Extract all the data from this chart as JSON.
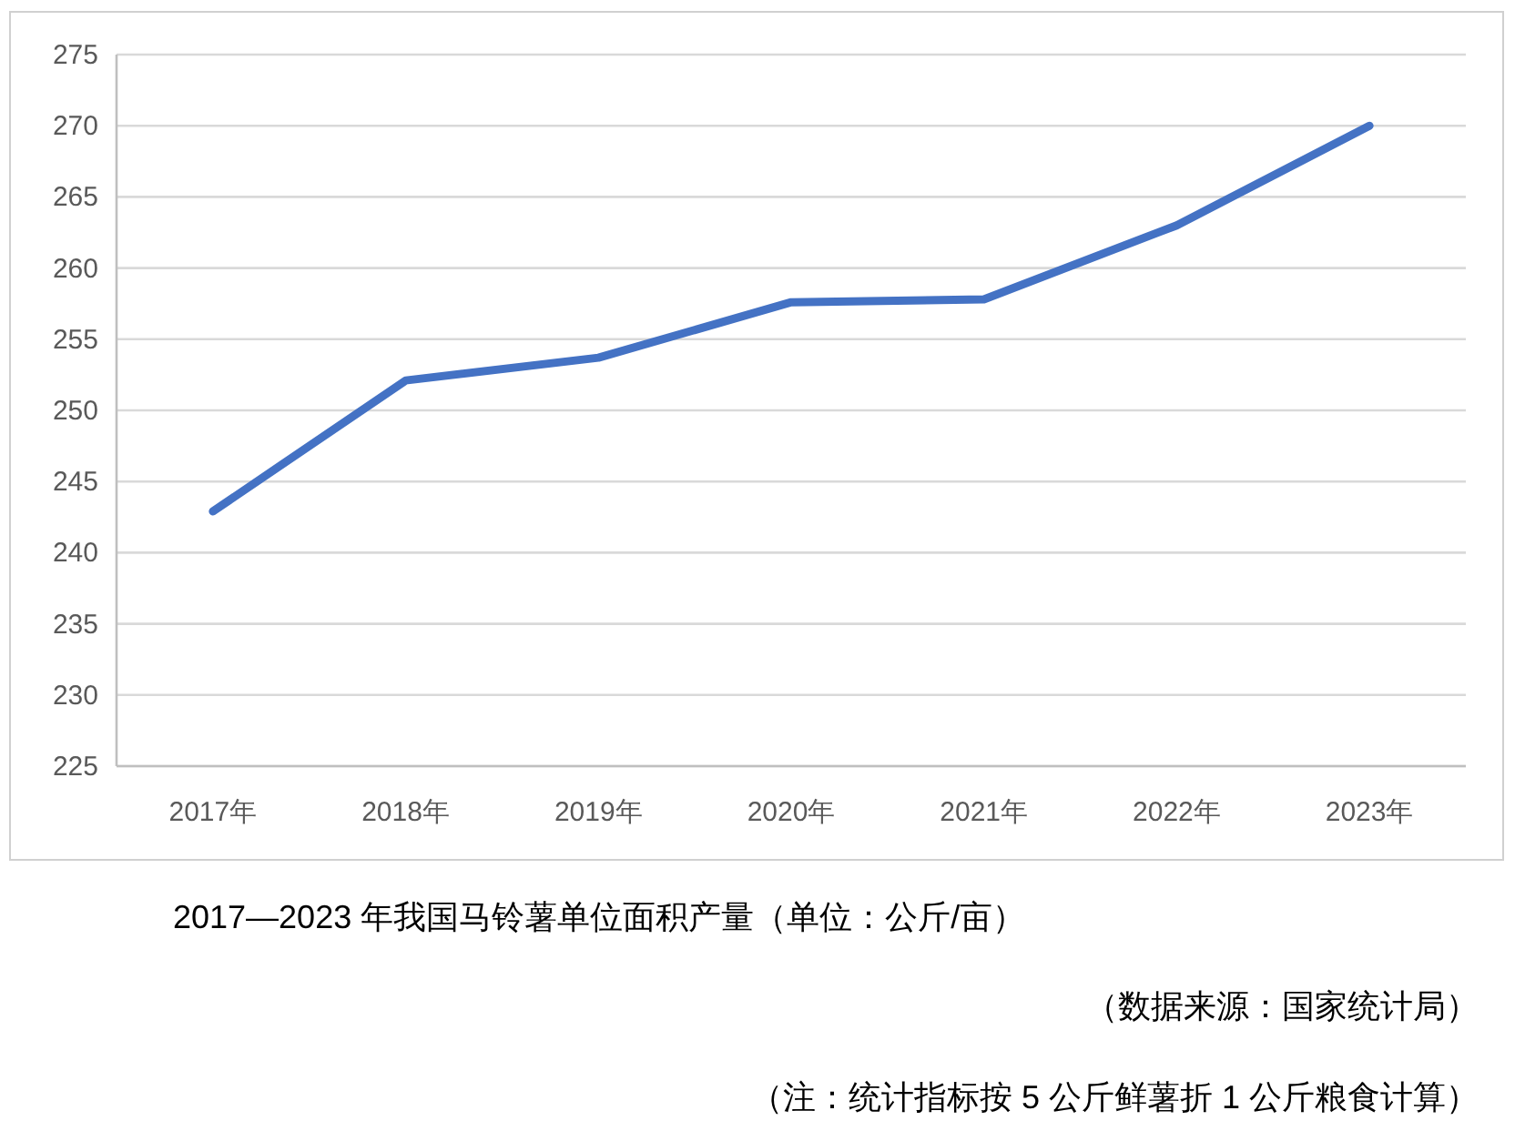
{
  "chart_data": {
    "type": "line",
    "title": "2017—2023 年我国马铃薯单位面积产量（单位：公斤/亩）",
    "annotations": [
      "（数据来源：国家统计局）",
      "（注：统计指标按 5 公斤鲜薯折 1 公斤粮食计算）"
    ],
    "categories": [
      "2017年",
      "2018年",
      "2019年",
      "2020年",
      "2021年",
      "2022年",
      "2023年"
    ],
    "series": [
      {
        "color": "#4472c4",
        "values": [
          242.9,
          252.1,
          253.7,
          257.6,
          257.8,
          263.0,
          270.0
        ]
      }
    ],
    "ylim": [
      225,
      275
    ],
    "yticks": [
      225,
      230,
      235,
      240,
      245,
      250,
      255,
      260,
      265,
      270,
      275
    ],
    "grid": "y",
    "marker": "none",
    "line_style": "solid"
  }
}
